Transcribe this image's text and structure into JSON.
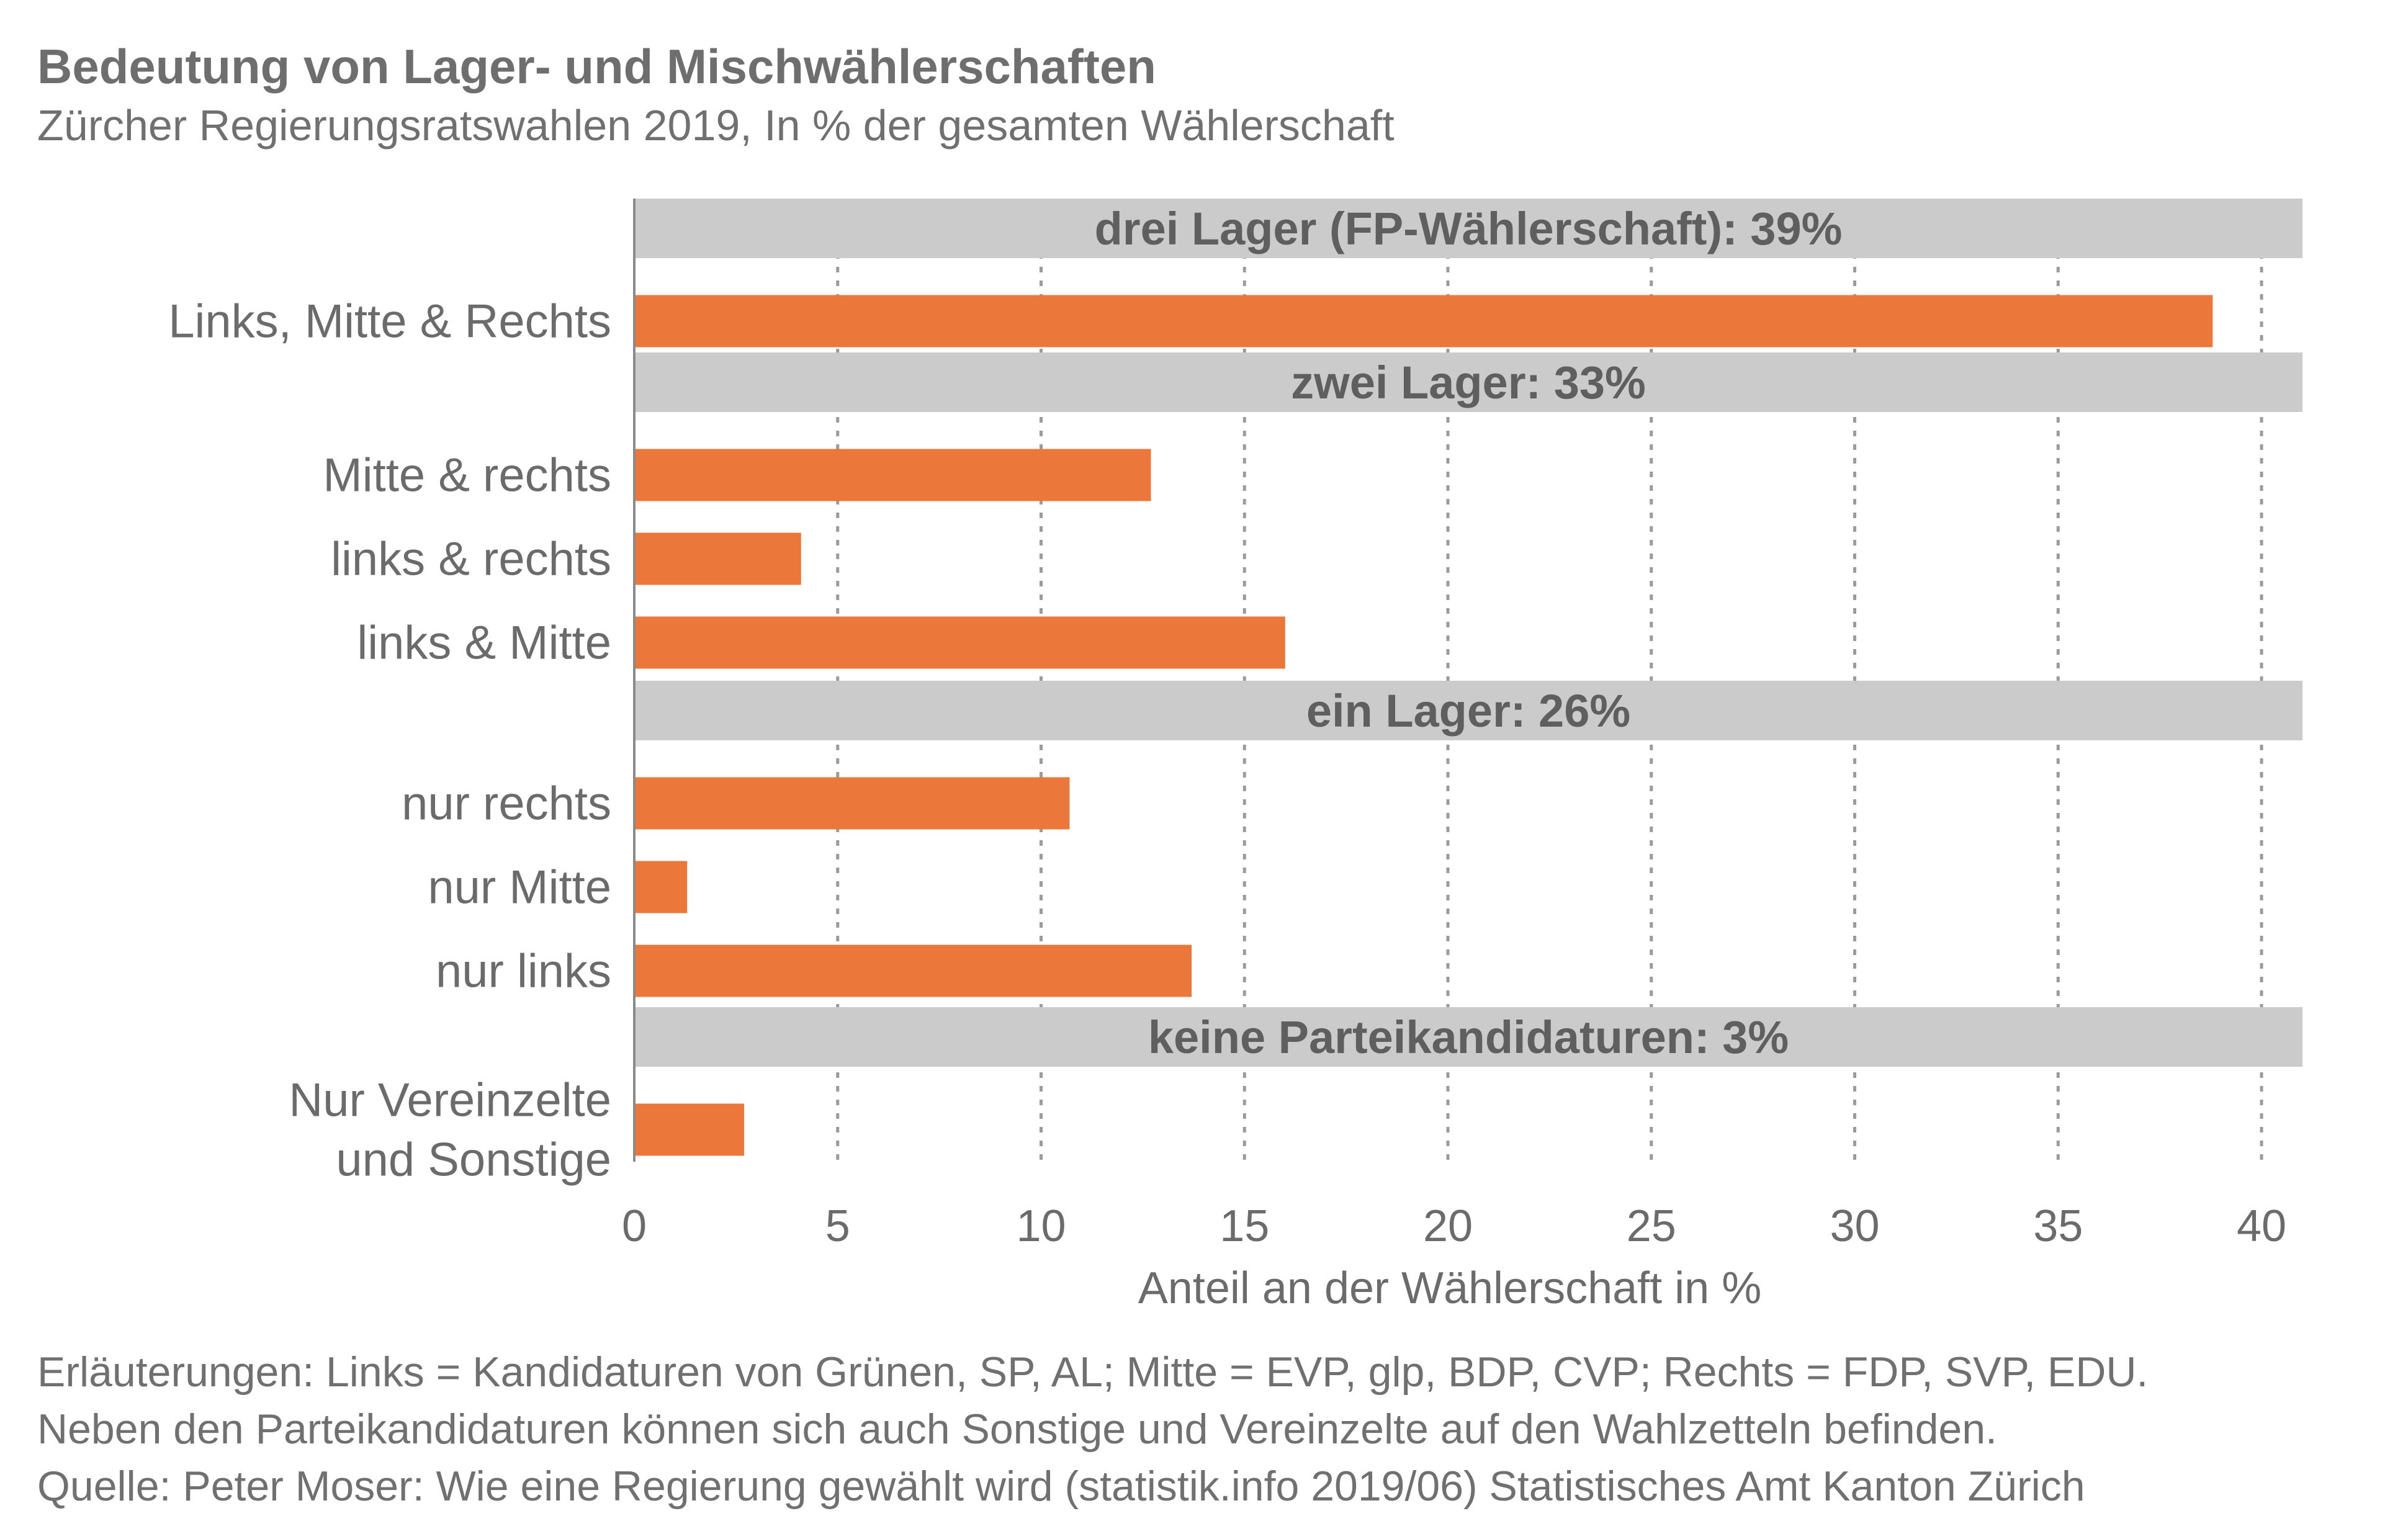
{
  "title": "Bedeutung von Lager- und Mischwählerschaften",
  "subtitle": "Zürcher Regierungsratswahlen 2019, In % der gesamten Wählerschaft",
  "colors": {
    "bar": "#ec773b",
    "group_band": "#cbcbcb",
    "grid": "#9b9b9b",
    "text": "#6b6b6b"
  },
  "chart_data": {
    "type": "bar",
    "orientation": "horizontal",
    "xlabel": "Anteil an der Wählerschaft in %",
    "xlim": [
      0,
      41
    ],
    "xticks": [
      0,
      5,
      10,
      15,
      20,
      25,
      30,
      35,
      40
    ],
    "grid": "vertical dotted",
    "groups": [
      {
        "label": "drei Lager (FP-Wählerschaft): 39%",
        "rows": [
          {
            "label": "Links, Mitte & Rechts",
            "value": 38.8
          }
        ]
      },
      {
        "label": "zwei Lager: 33%",
        "rows": [
          {
            "label": "Mitte & rechts",
            "value": 12.7
          },
          {
            "label": "links & rechts",
            "value": 4.1
          },
          {
            "label": "links & Mitte",
            "value": 16.0
          }
        ]
      },
      {
        "label": "ein Lager: 26%",
        "rows": [
          {
            "label": "nur rechts",
            "value": 10.7
          },
          {
            "label": "nur Mitte",
            "value": 1.3
          },
          {
            "label": "nur links",
            "value": 13.7
          }
        ]
      },
      {
        "label": "keine Parteikandidaturen: 3%",
        "rows": [
          {
            "label": "Nur Vereinzelte\nund Sonstige",
            "value": 2.7
          }
        ]
      }
    ]
  },
  "notes": [
    "Erläuterungen: Links = Kandidaturen von Grünen, SP, AL; Mitte = EVP, glp, BDP, CVP; Rechts = FDP, SVP, EDU.",
    "Neben den Parteikandidaturen können sich auch Sonstige und Vereinzelte auf den Wahlzetteln befinden.",
    "Quelle: Peter Moser: Wie eine Regierung gewählt wird (statistik.info 2019/06) Statistisches Amt Kanton Zürich"
  ]
}
